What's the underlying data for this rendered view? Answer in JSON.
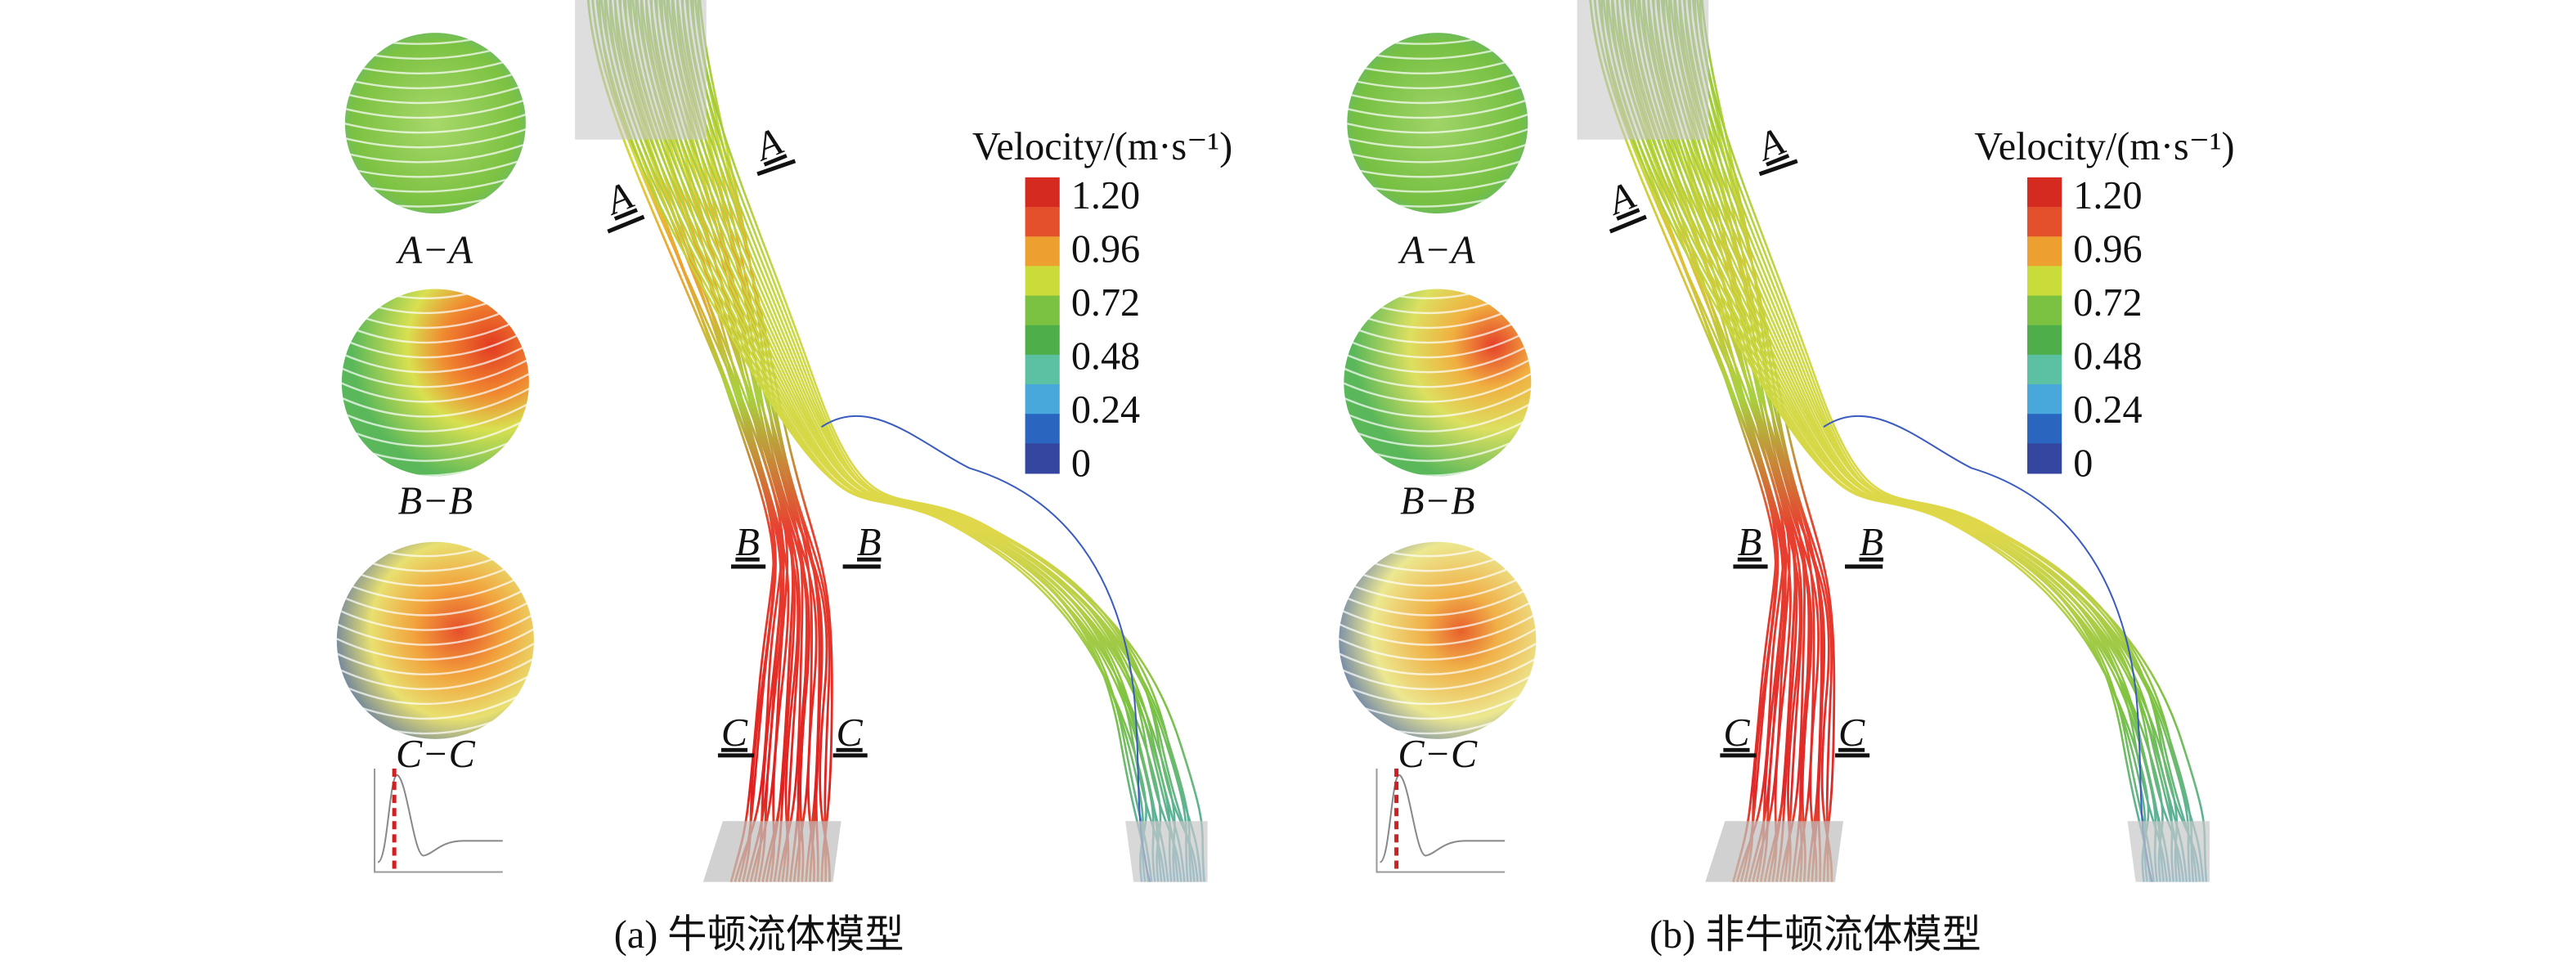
{
  "panels": [
    {
      "caption": "(a) 牛顿流体模型",
      "legend": {
        "title": "Velocity/(m·s⁻¹)",
        "labels": [
          "1.20",
          "0.96",
          "0.72",
          "0.48",
          "0.24",
          "0"
        ]
      },
      "sections": [
        "A−A",
        "B−B",
        "C−C"
      ],
      "markers": [
        "A",
        "A",
        "B",
        "B",
        "C",
        "C"
      ]
    },
    {
      "caption": "(b) 非牛顿流体模型",
      "legend": {
        "title": "Velocity/(m·s⁻¹)",
        "labels": [
          "1.20",
          "0.96",
          "0.72",
          "0.48",
          "0.24",
          "0"
        ]
      },
      "sections": [
        "A−A",
        "B−B",
        "C−C"
      ],
      "markers": [
        "A",
        "A",
        "B",
        "B",
        "C",
        "C"
      ]
    }
  ]
}
